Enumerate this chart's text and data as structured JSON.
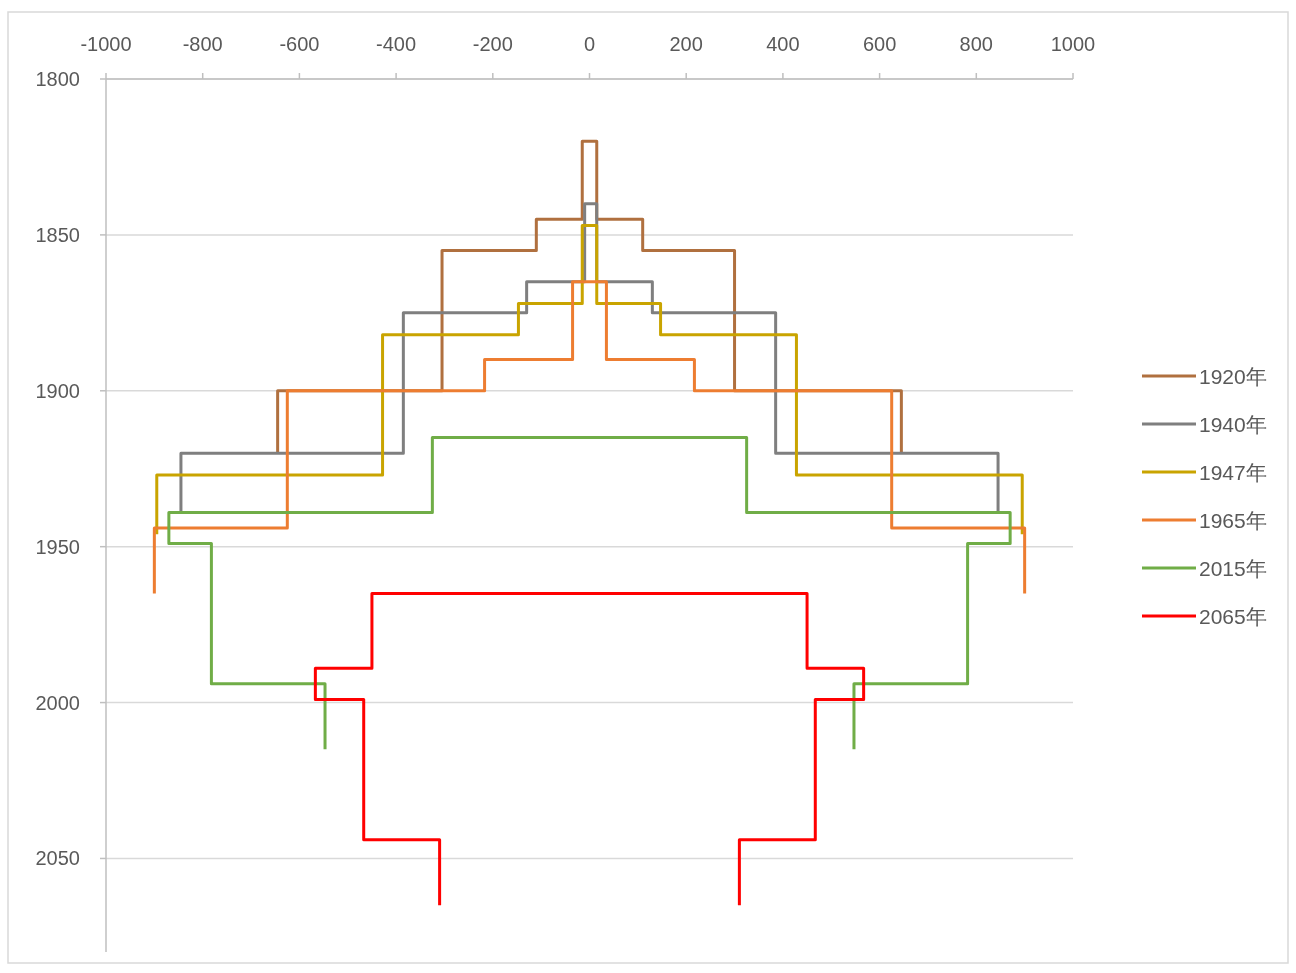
{
  "chart_data": {
    "type": "line",
    "xlim": [
      -1000,
      1000
    ],
    "xticks": [
      -1000,
      -800,
      -600,
      -400,
      -200,
      0,
      200,
      400,
      600,
      800,
      1000
    ],
    "ylim": [
      2080,
      1800
    ],
    "yticks": [
      1800,
      1850,
      1900,
      1950,
      2000,
      2050
    ],
    "grid": "y",
    "legend": "right",
    "series": [
      {
        "name": "1920年",
        "color": "#b0703f",
        "x": [
          -645,
          -645,
          -305,
          -305,
          -110,
          -110,
          -15,
          -15,
          15,
          15,
          110,
          110,
          300,
          300,
          645,
          645
        ],
        "values": [
          1920,
          1900,
          1900,
          1855,
          1855,
          1845,
          1845,
          1820,
          1820,
          1845,
          1845,
          1855,
          1855,
          1900,
          1900,
          1920
        ]
      },
      {
        "name": "1940年",
        "color": "#7f7f7f",
        "x": [
          -845,
          -845,
          -385,
          -385,
          -130,
          -130,
          -10,
          -10,
          15,
          15,
          130,
          130,
          385,
          385,
          845,
          845
        ],
        "values": [
          1939,
          1920,
          1920,
          1875,
          1875,
          1865,
          1865,
          1840,
          1840,
          1865,
          1865,
          1875,
          1875,
          1920,
          1920,
          1939
        ]
      },
      {
        "name": "1947年",
        "color": "#c9a400",
        "x": [
          -895,
          -895,
          -428,
          -428,
          -147,
          -147,
          -15,
          -15,
          15,
          15,
          147,
          147,
          428,
          428,
          895,
          895
        ],
        "values": [
          1946,
          1927,
          1927,
          1882,
          1882,
          1872,
          1872,
          1847,
          1847,
          1872,
          1872,
          1882,
          1882,
          1927,
          1927,
          1946
        ]
      },
      {
        "name": "1965年",
        "color": "#ed7d31",
        "x": [
          -900,
          -900,
          -625,
          -625,
          -217,
          -217,
          -35,
          -35,
          35,
          35,
          217,
          217,
          625,
          625,
          900,
          900
        ],
        "values": [
          1965,
          1944,
          1944,
          1900,
          1900,
          1890,
          1890,
          1865,
          1865,
          1890,
          1890,
          1900,
          1900,
          1944,
          1944,
          1965
        ]
      },
      {
        "name": "2015年",
        "color": "#70ad47",
        "x": [
          -547,
          -547,
          -782,
          -782,
          -870,
          -870,
          -325,
          -325,
          325,
          325,
          870,
          870,
          782,
          782,
          547,
          547
        ],
        "values": [
          2015,
          1994,
          1994,
          1949,
          1949,
          1939,
          1939,
          1915,
          1915,
          1939,
          1939,
          1949,
          1949,
          1994,
          1994,
          2015
        ]
      },
      {
        "name": "2065年",
        "color": "#ff0000",
        "x": [
          -310,
          -310,
          -467,
          -467,
          -567,
          -567,
          -450,
          -450,
          450,
          450,
          567,
          567,
          467,
          467,
          310,
          310
        ],
        "values": [
          2065,
          2044,
          2044,
          1999,
          1999,
          1989,
          1989,
          1965,
          1965,
          1989,
          1989,
          1999,
          1999,
          2044,
          2044,
          2065
        ]
      }
    ]
  }
}
